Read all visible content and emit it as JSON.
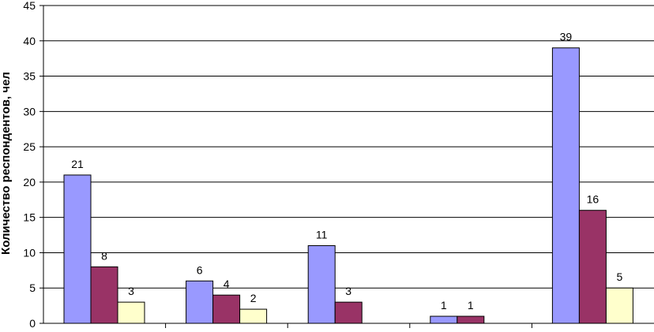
{
  "chart_data": {
    "type": "bar",
    "title": "",
    "xlabel": "",
    "ylabel": "Количество респондентов, чел",
    "ylim": [
      0,
      45
    ],
    "yticks": [
      0,
      5,
      10,
      15,
      20,
      25,
      30,
      35,
      40,
      45
    ],
    "grid": true,
    "legend": "none",
    "categories": [
      "",
      "",
      "",
      "",
      ""
    ],
    "series": [
      {
        "values": [
          21,
          6,
          11,
          1,
          39
        ],
        "color": "#9999ff"
      },
      {
        "values": [
          8,
          4,
          3,
          1,
          16
        ],
        "color": "#993366"
      },
      {
        "values": [
          3,
          2,
          0,
          0,
          5
        ],
        "color": "#ffffcc"
      }
    ],
    "data_labels": [
      [
        "21",
        "6",
        "11",
        "1",
        "39"
      ],
      [
        "8",
        "4",
        "3",
        "1",
        "16"
      ],
      [
        "3",
        "2",
        "",
        "",
        "5"
      ]
    ]
  }
}
